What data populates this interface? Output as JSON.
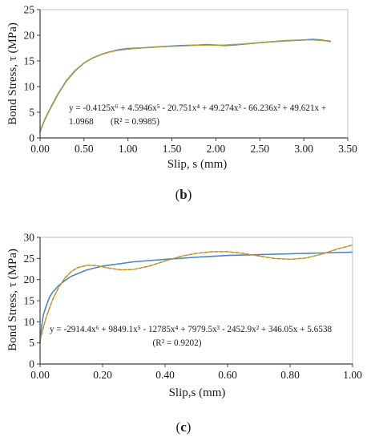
{
  "chart_data": [
    {
      "type": "line",
      "panel_label": "b",
      "xlabel": "Slip, s (mm)",
      "ylabel": "Bond Stress, τ (MPa)",
      "xlim": [
        0,
        3.5
      ],
      "ylim": [
        0,
        25
      ],
      "xticks": [
        "0.00",
        "0.50",
        "1.00",
        "1.50",
        "2.00",
        "2.50",
        "3.00",
        "3.50"
      ],
      "yticks": [
        "0",
        "5",
        "10",
        "15",
        "20",
        "25"
      ],
      "equation_line1": "y = -0.4125x⁶ + 4.5946x⁵ - 20.751x⁴ + 49.274x³ - 66.236x² + 49.621x +",
      "equation_line2": "1.0968",
      "r2": "(R² = 0.9985)",
      "grid": false,
      "colors": {
        "experimental": "#4a86c8",
        "fit": "#e08a2a",
        "fit_secondary": "#8aa840"
      },
      "series": [
        {
          "style": "solid",
          "x": [
            0,
            0.02,
            0.05,
            0.1,
            0.15,
            0.2,
            0.3,
            0.4,
            0.5,
            0.6,
            0.7,
            0.8,
            0.9,
            1.0,
            1.2,
            1.4,
            1.6,
            1.8,
            1.9,
            2.0,
            2.1,
            2.2,
            2.4,
            2.6,
            2.8,
            3.0,
            3.1,
            3.2,
            3.3
          ],
          "y": [
            1.2,
            2.2,
            3.4,
            5.2,
            6.8,
            8.4,
            11.1,
            13.1,
            14.6,
            15.6,
            16.3,
            16.8,
            17.2,
            17.4,
            17.6,
            17.8,
            18.0,
            18.1,
            18.2,
            18.1,
            18.0,
            18.1,
            18.4,
            18.7,
            18.9,
            19.1,
            19.2,
            19.1,
            18.8
          ]
        },
        {
          "style": "dashed",
          "x": [
            0,
            0.02,
            0.05,
            0.1,
            0.15,
            0.2,
            0.3,
            0.4,
            0.5,
            0.6,
            0.7,
            0.8,
            0.9,
            1.0,
            1.2,
            1.4,
            1.6,
            1.8,
            1.9,
            2.0,
            2.1,
            2.2,
            2.4,
            2.6,
            2.8,
            3.0,
            3.1,
            3.2,
            3.3
          ],
          "y": [
            1.1,
            2.1,
            3.5,
            5.3,
            6.9,
            8.5,
            11.2,
            13.2,
            14.6,
            15.6,
            16.3,
            16.8,
            17.1,
            17.3,
            17.6,
            17.8,
            17.9,
            18.1,
            18.1,
            18.1,
            18.1,
            18.2,
            18.4,
            18.7,
            19.0,
            19.1,
            19.1,
            19.0,
            18.9
          ]
        }
      ]
    },
    {
      "type": "line",
      "panel_label": "c",
      "xlabel": "Slip,s (mm)",
      "ylabel": "Bond Stress, τ (MPa)",
      "xlim": [
        0,
        1
      ],
      "ylim": [
        0,
        30
      ],
      "xticks": [
        "0.00",
        "0.20",
        "0.40",
        "0.60",
        "0.80",
        "1.00"
      ],
      "yticks": [
        "0",
        "5",
        "10",
        "15",
        "20",
        "25",
        "30"
      ],
      "equation_line1": "y = -2914.4x⁶ + 9849.1x⁵ - 12785x⁴ + 7979.5x³ - 2452.9x² + 346.05x + 5.6538",
      "r2": "(R² = 0.9202)",
      "grid": false,
      "colors": {
        "experimental": "#4a86c8",
        "fit": "#9a9a2a",
        "fit_secondary": "#e08a2a"
      },
      "series": [
        {
          "style": "solid",
          "x": [
            0,
            0.005,
            0.01,
            0.02,
            0.03,
            0.04,
            0.06,
            0.08,
            0.1,
            0.15,
            0.2,
            0.3,
            0.4,
            0.5,
            0.6,
            0.7,
            0.8,
            0.9,
            1.0
          ],
          "y": [
            5.0,
            9.0,
            11.5,
            13.8,
            15.8,
            17.0,
            18.6,
            19.8,
            20.8,
            22.3,
            23.2,
            24.2,
            24.8,
            25.3,
            25.7,
            25.9,
            26.1,
            26.3,
            26.5
          ]
        },
        {
          "style": "dashed",
          "x": [
            0,
            0.02,
            0.04,
            0.06,
            0.08,
            0.1,
            0.12,
            0.15,
            0.18,
            0.22,
            0.26,
            0.3,
            0.35,
            0.4,
            0.45,
            0.5,
            0.55,
            0.6,
            0.65,
            0.7,
            0.75,
            0.8,
            0.85,
            0.9,
            0.95,
            1.0
          ],
          "y": [
            5.65,
            11.2,
            15.2,
            18.2,
            20.4,
            21.9,
            22.8,
            23.4,
            23.3,
            22.7,
            22.3,
            22.4,
            23.2,
            24.4,
            25.5,
            26.2,
            26.6,
            26.6,
            26.2,
            25.6,
            25.0,
            24.8,
            25.1,
            26.0,
            27.2,
            28.2
          ]
        }
      ]
    }
  ]
}
